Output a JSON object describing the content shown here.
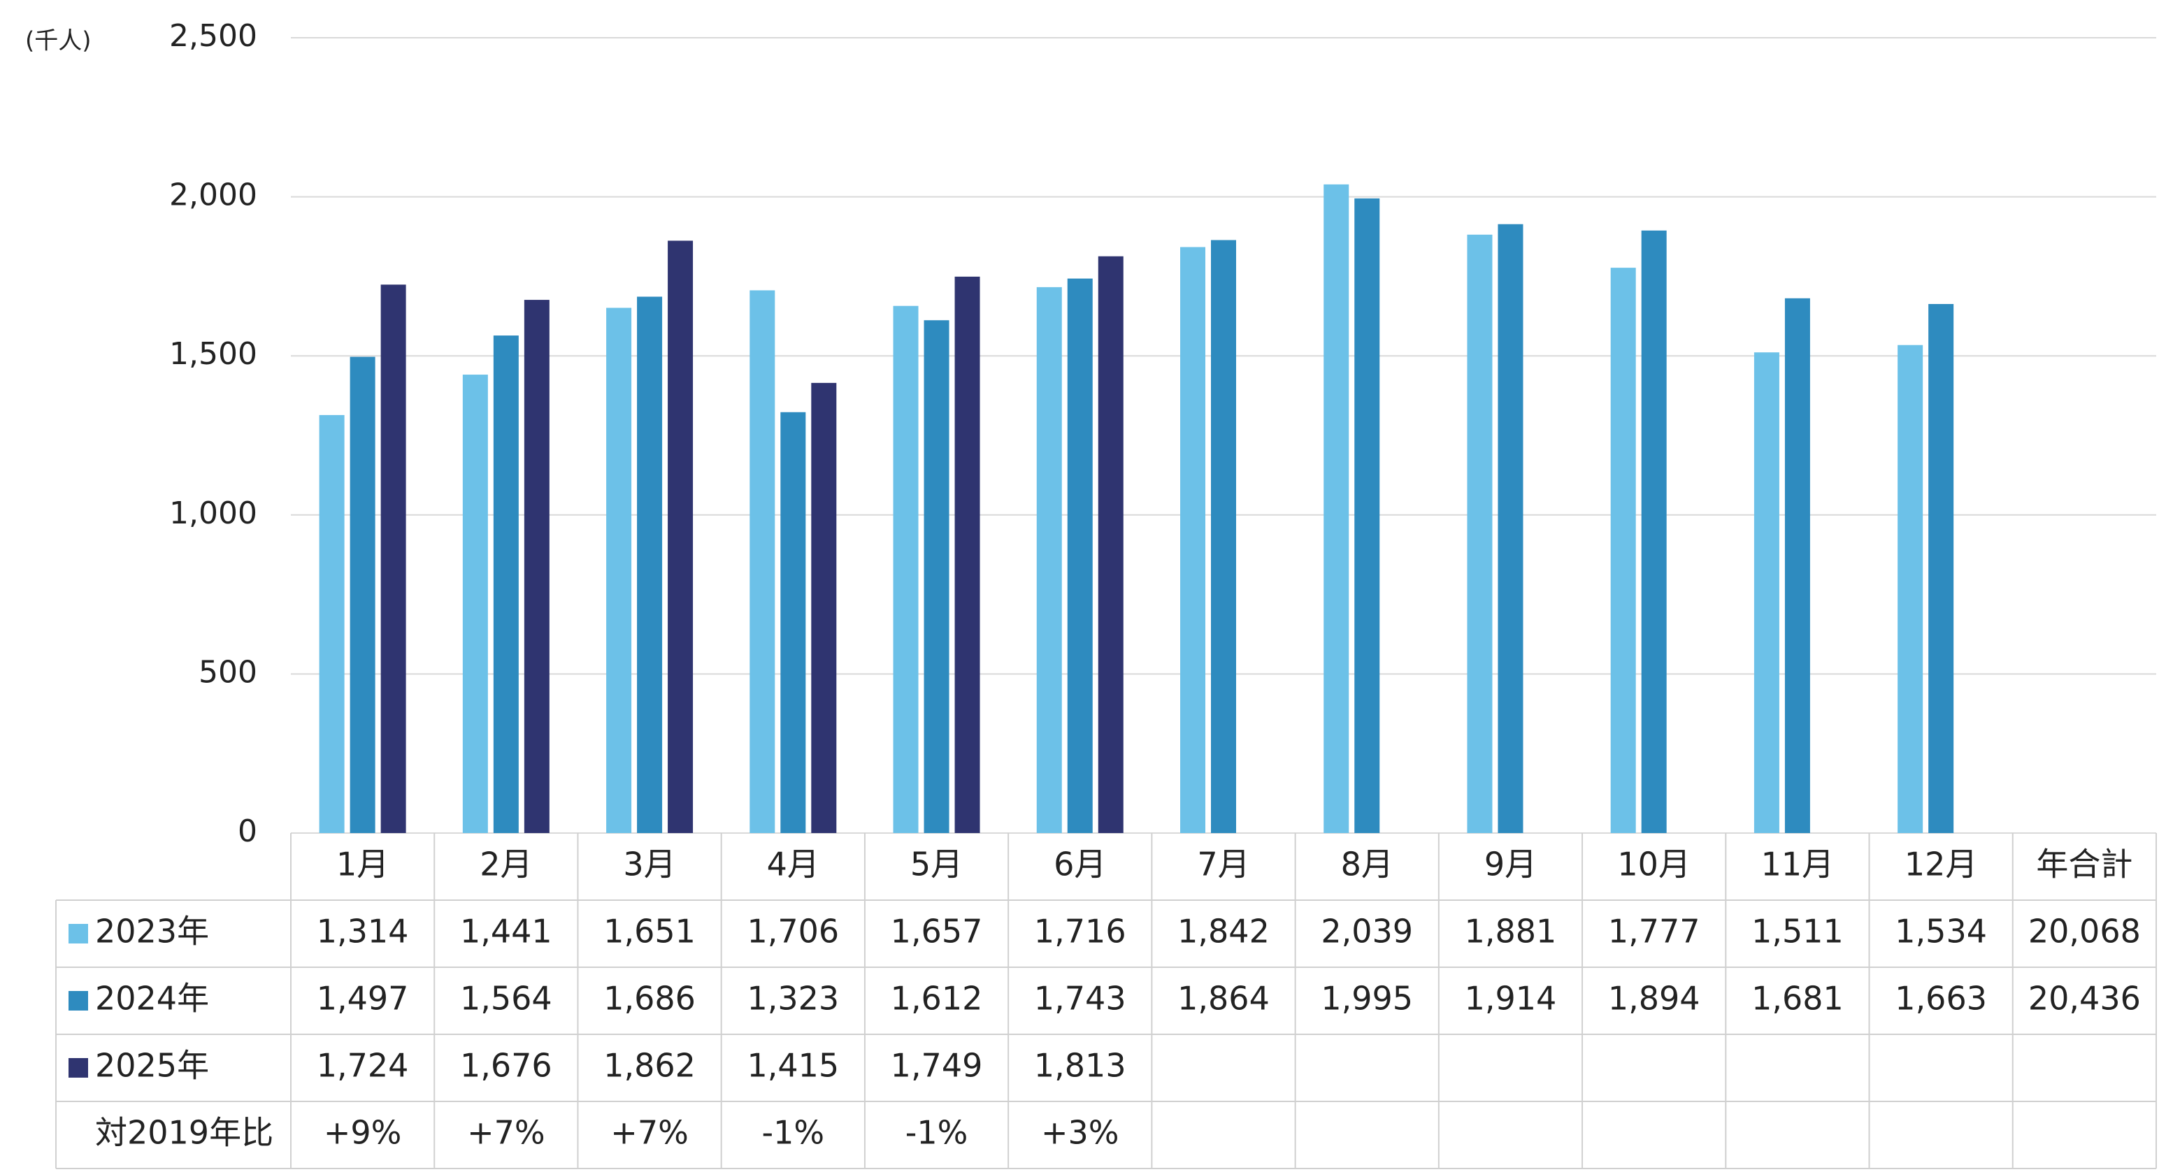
{
  "chart_data": {
    "type": "bar",
    "unit_label": "(千人)",
    "categories": [
      "1月",
      "2月",
      "3月",
      "4月",
      "5月",
      "6月",
      "7月",
      "8月",
      "9月",
      "10月",
      "11月",
      "12月"
    ],
    "total_label": "年合計",
    "series": [
      {
        "name": "2023年",
        "color": "#6cc1e8",
        "values": [
          1314,
          1441,
          1651,
          1706,
          1657,
          1716,
          1842,
          2039,
          1881,
          1777,
          1511,
          1534
        ],
        "value_labels": [
          "1,314",
          "1,441",
          "1,651",
          "1,706",
          "1,657",
          "1,716",
          "1,842",
          "2,039",
          "1,881",
          "1,777",
          "1,511",
          "1,534"
        ],
        "total": 20068,
        "total_label": "20,068"
      },
      {
        "name": "2024年",
        "color": "#2e8bbf",
        "values": [
          1497,
          1564,
          1686,
          1323,
          1612,
          1743,
          1864,
          1995,
          1914,
          1894,
          1681,
          1663
        ],
        "value_labels": [
          "1,497",
          "1,564",
          "1,686",
          "1,323",
          "1,612",
          "1,743",
          "1,864",
          "1,995",
          "1,914",
          "1,894",
          "1,681",
          "1,663"
        ],
        "total": 20436,
        "total_label": "20,436"
      },
      {
        "name": "2025年",
        "color": "#2f3470",
        "values": [
          1724,
          1676,
          1862,
          1415,
          1749,
          1813,
          null,
          null,
          null,
          null,
          null,
          null
        ],
        "value_labels": [
          "1,724",
          "1,676",
          "1,862",
          "1,415",
          "1,749",
          "1,813",
          null,
          null,
          null,
          null,
          null,
          null
        ]
      }
    ],
    "comparison": {
      "name": "対2019年比",
      "values": [
        9,
        7,
        7,
        -1,
        -1,
        3,
        null,
        null,
        null,
        null,
        null,
        null
      ],
      "value_labels": [
        "+9%",
        "+7%",
        "+7%",
        "-1%",
        "-1%",
        "+3%",
        null,
        null,
        null,
        null,
        null,
        null
      ]
    },
    "ylim": [
      0,
      2500
    ],
    "yticks": [
      0,
      {
        "value": 500,
        "label": "500"
      },
      {
        "value": 1000,
        "label": "1,000"
      },
      {
        "value": 1500,
        "label": "1,500"
      },
      {
        "value": 2000,
        "label": "2,000"
      },
      {
        "value": 2500,
        "label": "2,500"
      }
    ],
    "grid": true
  }
}
